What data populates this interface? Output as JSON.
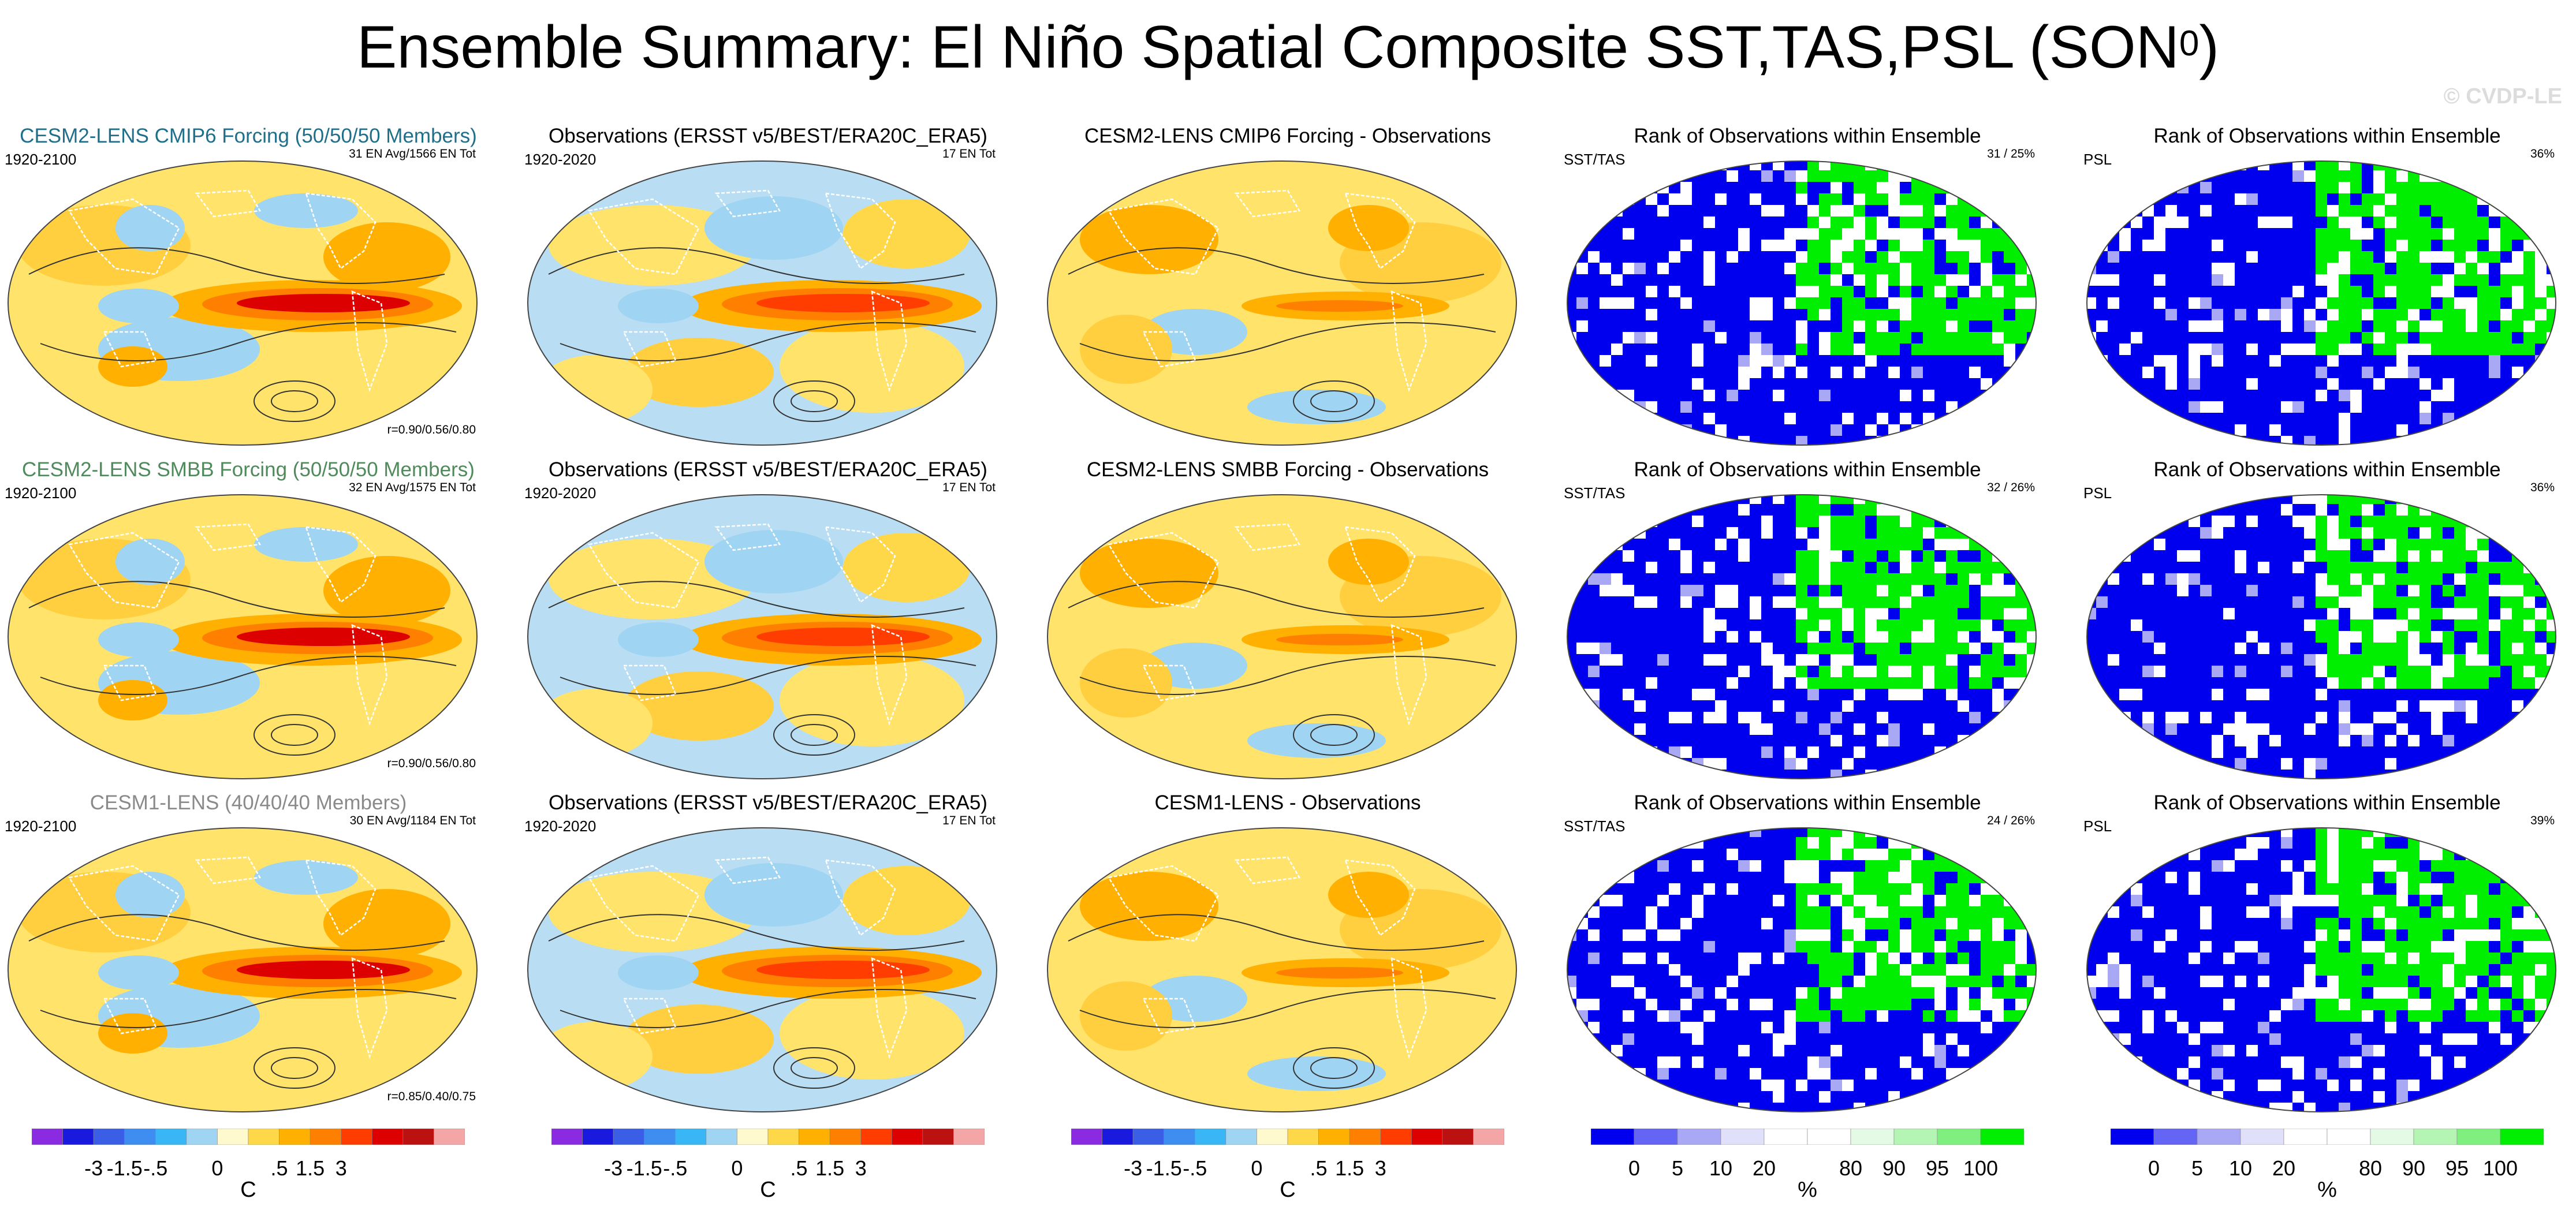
{
  "figure": {
    "title_main": "Ensemble Summary: El Niño Spatial Composite SST,TAS,PSL (SON",
    "title_sup": "0",
    "title_close": ")",
    "watermark": "© CVDP-LE"
  },
  "panels": [
    [
      {
        "title": "CESM2-LENS CMIP6 Forcing (50/50/50 Members)",
        "title_color": "#1f6f8b",
        "left": "1920-2100",
        "right": "31 EN Avg/1566 EN Tot",
        "bottom": "r=0.90/0.56/0.80"
      },
      {
        "title": "Observations (ERSST v5/BEST/ERA20C_ERA5)",
        "left": "1920-2020",
        "right": "17 EN Tot"
      },
      {
        "title": "CESM2-LENS CMIP6 Forcing - Observations"
      },
      {
        "title": "Rank of Observations within Ensemble",
        "left": "SST/TAS",
        "right": "31 /  25%"
      },
      {
        "title": "Rank of Observations within Ensemble",
        "left": "PSL",
        "right": "36%"
      }
    ],
    [
      {
        "title": "CESM2-LENS SMBB Forcing (50/50/50 Members)",
        "title_color": "#4f8a5b",
        "left": "1920-2100",
        "right": "32 EN Avg/1575 EN Tot",
        "bottom": "r=0.90/0.56/0.80"
      },
      {
        "title": "Observations (ERSST v5/BEST/ERA20C_ERA5)",
        "left": "1920-2020",
        "right": "17 EN Tot"
      },
      {
        "title": "CESM2-LENS SMBB Forcing - Observations"
      },
      {
        "title": "Rank of Observations within Ensemble",
        "left": "SST/TAS",
        "right": "32 /  26%"
      },
      {
        "title": "Rank of Observations within Ensemble",
        "left": "PSL",
        "right": "36%"
      }
    ],
    [
      {
        "title": "CESM1-LENS (40/40/40 Members)",
        "title_color": "#8a8a8a",
        "left": "1920-2100",
        "right": "30 EN Avg/1184 EN Tot",
        "bottom": "r=0.85/0.40/0.75"
      },
      {
        "title": "Observations (ERSST v5/BEST/ERA20C_ERA5)",
        "left": "1920-2020",
        "right": "17 EN Tot"
      },
      {
        "title": "CESM1-LENS - Observations"
      },
      {
        "title": "Rank of Observations within Ensemble",
        "left": "SST/TAS",
        "right": "24 /  26%"
      },
      {
        "title": "Rank of Observations within Ensemble",
        "left": "PSL",
        "right": "39%"
      }
    ]
  ],
  "chart_data": {
    "type": "heatmap",
    "description_units": {
      "anomaly": "C",
      "rank": "%"
    },
    "anomaly_colorbar": {
      "colors": [
        "#8a2be2",
        "#1a1adf",
        "#3a5fe6",
        "#3d8ef0",
        "#38b6f5",
        "#9fd4f2",
        "#fffacd",
        "#ffd84a",
        "#ffb000",
        "#ff7f00",
        "#ff3d00",
        "#dd0000",
        "#bb1111",
        "#f4a6a6"
      ],
      "tick_labels": [
        "-3",
        "-1.5",
        "-.5",
        "0",
        ".5",
        "1.5",
        "3"
      ],
      "unit": "C"
    },
    "rank_colorbar": {
      "colors": [
        "#0000ee",
        "#6464f5",
        "#a8a8f5",
        "#e0e0fa",
        "#ffffff",
        "#ffffff",
        "#e4fae4",
        "#b4f5b4",
        "#7ff07f",
        "#00ee00"
      ],
      "tick_labels": [
        "0",
        "5",
        "10",
        "20",
        "80",
        "90",
        "95",
        "100"
      ],
      "unit": "%"
    },
    "rank_summary": {
      "SST/TAS": [
        {
          "count": 31,
          "percent": 25
        },
        {
          "count": 32,
          "percent": 26
        },
        {
          "count": 24,
          "percent": 26
        }
      ],
      "PSL": [
        36,
        36,
        39
      ]
    },
    "pattern_correlations": [
      "0.90/0.56/0.80",
      "0.90/0.56/0.80",
      "0.85/0.40/0.75"
    ]
  }
}
